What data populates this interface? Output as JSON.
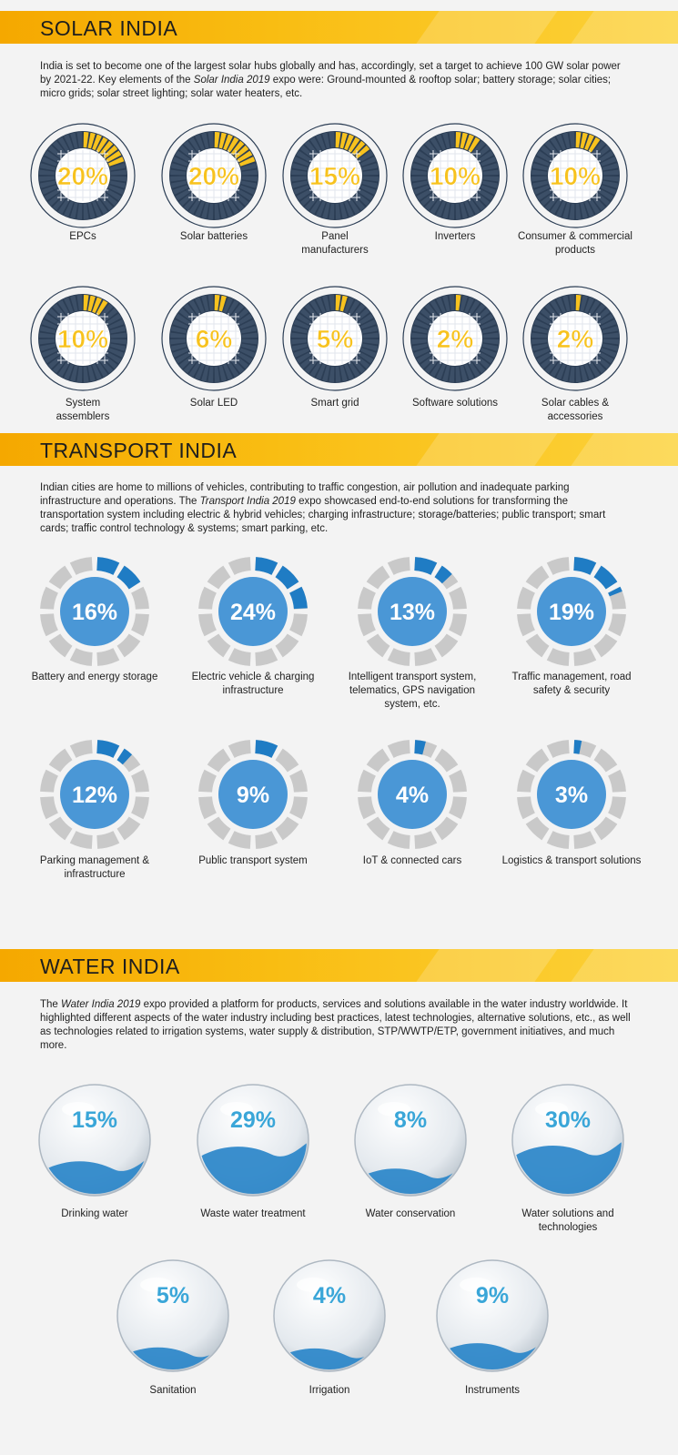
{
  "solar": {
    "title": "SOLAR INDIA",
    "intro": {
      "part1": "India is set to become one of the largest solar hubs globally and has, accordingly, set a target to achieve 100 GW solar power by 2021-22. Key elements of the ",
      "italic": "Solar India 2019",
      "part2": " expo were: Ground-mounted & rooftop solar; battery storage; solar cities; micro grids; solar street lighting; solar water heaters, etc."
    },
    "accent_color": "#f7c21e",
    "dark_color": "#2c3e55",
    "items": [
      {
        "pct": "20%",
        "value": 20,
        "label": "EPCs"
      },
      {
        "pct": "20%",
        "value": 20,
        "label": "Solar batteries"
      },
      {
        "pct": "15%",
        "value": 15,
        "label": "Panel manufacturers"
      },
      {
        "pct": "10%",
        "value": 10,
        "label": "Inverters"
      },
      {
        "pct": "10%",
        "value": 10,
        "label": "Consumer & commercial products"
      },
      {
        "pct": "10%",
        "value": 10,
        "label": "System assemblers"
      },
      {
        "pct": "6%",
        "value": 6,
        "label": "Solar LED"
      },
      {
        "pct": "5%",
        "value": 5,
        "label": "Smart grid"
      },
      {
        "pct": "2%",
        "value": 2,
        "label": "Software solutions"
      },
      {
        "pct": "2%",
        "value": 2,
        "label": "Solar cables & accessories"
      }
    ]
  },
  "transport": {
    "title": "TRANSPORT INDIA",
    "intro": {
      "part1": "Indian cities are home to millions of vehicles, contributing to traffic congestion, air pollution and inadequate parking infrastructure and operations. The ",
      "italic": "Transport India 2019",
      "part2": " expo showcased end-to-end solutions for transforming the transportation system including electric & hybrid vehicles; charging infrastructure; storage/batteries; public transport; smart cards; traffic control technology & systems; smart parking, etc."
    },
    "accent_color": "#1f7cc4",
    "center_color": "#4a97d6",
    "items": [
      {
        "pct": "16%",
        "value": 16,
        "label": "Battery and energy storage"
      },
      {
        "pct": "24%",
        "value": 24,
        "label": "Electric vehicle & charging infrastructure"
      },
      {
        "pct": "13%",
        "value": 13,
        "label": "Intelligent transport system, telematics, GPS navigation system, etc."
      },
      {
        "pct": "19%",
        "value": 19,
        "label": "Traffic management, road safety & security"
      },
      {
        "pct": "12%",
        "value": 12,
        "label": "Parking management & infrastructure"
      },
      {
        "pct": "9%",
        "value": 9,
        "label": "Public transport system"
      },
      {
        "pct": "4%",
        "value": 4,
        "label": "IoT & connected cars"
      },
      {
        "pct": "3%",
        "value": 3,
        "label": "Logistics & transport solutions"
      }
    ]
  },
  "water": {
    "title": "WATER INDIA",
    "intro": {
      "part1": "The ",
      "italic": "Water India 2019",
      "part2": " expo provided a platform for products, services and solutions available in the water industry worldwide. It highlighted different aspects of the water industry including best practices, latest technologies, alternative solutions, etc., as well as technologies related to irrigation systems, water supply & distribution, STP/WWTP/ETP, government initiatives, and much more."
    },
    "text_color": "#3aa6d8",
    "water_color": "#2a86c9",
    "items": [
      {
        "pct": "15%",
        "value": 15,
        "label": "Drinking water"
      },
      {
        "pct": "29%",
        "value": 29,
        "label": "Waste water treatment"
      },
      {
        "pct": "8%",
        "value": 8,
        "label": "Water conservation"
      },
      {
        "pct": "30%",
        "value": 30,
        "label": "Water solutions and technologies"
      },
      {
        "pct": "5%",
        "value": 5,
        "label": "Sanitation"
      },
      {
        "pct": "4%",
        "value": 4,
        "label": "Irrigation"
      },
      {
        "pct": "9%",
        "value": 9,
        "label": "Instruments"
      }
    ]
  }
}
